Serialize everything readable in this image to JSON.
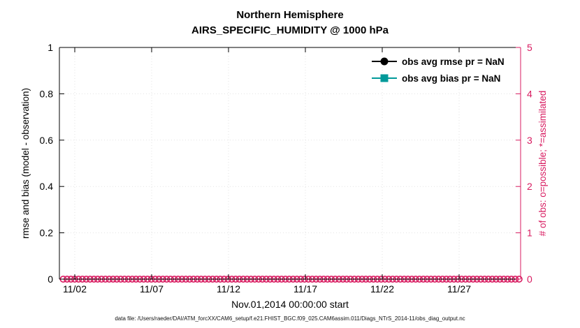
{
  "title": {
    "line1": "Northern Hemisphere",
    "line2": "AIRS_SPECIFIC_HUMIDITY @ 1000 hPa"
  },
  "chart_data": {
    "type": "line",
    "title": "Northern Hemisphere",
    "subtitle": "AIRS_SPECIFIC_HUMIDITY @ 1000 hPa",
    "xlabel": "Nov.01,2014 00:00:00 start",
    "ylabel_left": "rmse and bias (model - observation)",
    "ylabel_right": "# of obs: o=possible; *=assimilated",
    "grid": true,
    "legend_position": "upper-right",
    "x_axis": {
      "range_days": [
        0,
        30
      ],
      "tick_days": [
        1,
        6,
        11,
        16,
        21,
        26
      ],
      "tick_labels": [
        "11/02",
        "11/07",
        "11/12",
        "11/17",
        "11/22",
        "11/27"
      ]
    },
    "y_left": {
      "lim": [
        0,
        1
      ],
      "ticks": [
        0,
        0.2,
        0.4,
        0.6,
        0.8,
        1
      ],
      "tick_labels": [
        "0",
        "0.2",
        "0.4",
        "0.6",
        "0.8",
        "1"
      ],
      "color": "#000000"
    },
    "y_right": {
      "lim": [
        0,
        5
      ],
      "ticks": [
        0,
        1,
        2,
        3,
        4,
        5
      ],
      "tick_labels": [
        "0",
        "1",
        "2",
        "3",
        "4",
        "5"
      ],
      "color": "#d81b60"
    },
    "legend": [
      {
        "label": "obs avg rmse pr = NaN",
        "color": "#000000",
        "marker": "circle"
      },
      {
        "label": "obs avg bias pr = NaN",
        "color": "#009999",
        "marker": "square"
      }
    ],
    "series": [
      {
        "name": "obs avg rmse pr = NaN",
        "color": "#000000",
        "marker": "circle",
        "x": [],
        "y": []
      },
      {
        "name": "obs avg bias pr = NaN",
        "color": "#009999",
        "marker": "square",
        "x": [],
        "y": []
      }
    ],
    "obs_markers": {
      "axis": "right",
      "value": 0,
      "color": "#d81b60",
      "marker": "o",
      "count": 120,
      "start_day": 0.25,
      "end_day": 29.9
    }
  },
  "footer": {
    "caption": "data file: /Users/raeder/DAI/ATM_forcXX/CAM6_setup/f.e21.FHIST_BGC.f09_025.CAM6assim.011/Diags_NTrS_2014-11/obs_diag_output.nc"
  }
}
